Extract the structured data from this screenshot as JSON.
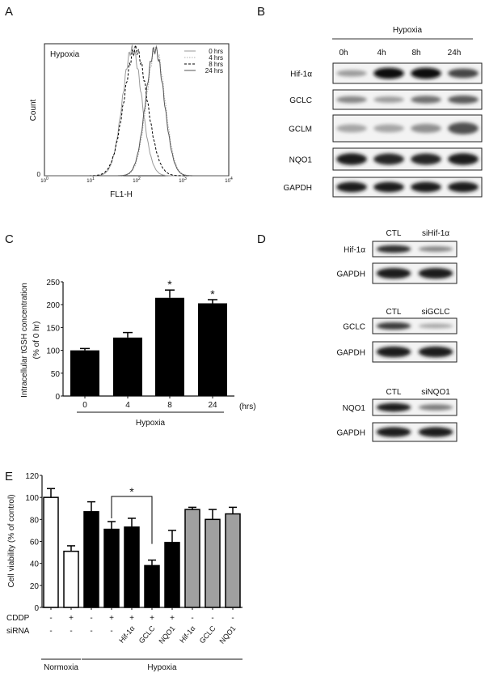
{
  "panels": {
    "a": "A",
    "b": "B",
    "c": "C",
    "d": "D",
    "e": "E"
  },
  "chart_data": [
    {
      "panel": "A",
      "type": "line",
      "title": "Hypoxia",
      "xlabel": "FL1-H",
      "ylabel": "Count",
      "x_scale": "log",
      "xlim": [
        1,
        10000
      ],
      "x_ticks": [
        "0",
        "1",
        "2",
        "3",
        "4"
      ],
      "x_tick_base": "10",
      "y_ticks": [
        "0"
      ],
      "legend_position": "top-right",
      "series": [
        {
          "name": "0 hrs",
          "peak_fl1h": 80,
          "log_sigma": 0.21,
          "color": "#9a9a9a",
          "style": "solid"
        },
        {
          "name": "4 hrs",
          "peak_fl1h": 260,
          "log_sigma": 0.2,
          "color": "#b0b0b0",
          "style": "dotted"
        },
        {
          "name": "8 hrs",
          "peak_fl1h": 95,
          "log_sigma": 0.25,
          "color": "#000000",
          "style": "dashed"
        },
        {
          "name": "24 hrs",
          "peak_fl1h": 250,
          "log_sigma": 0.2,
          "color": "#555555",
          "style": "solid"
        }
      ]
    },
    {
      "panel": "C",
      "type": "bar",
      "ylabel_line1": "Intracellular tGSH concentration",
      "ylabel_line2": "(% of 0 hr)",
      "categories": [
        "0",
        "4",
        "8",
        "24"
      ],
      "x_unit": "(hrs)",
      "group_label": "Hypoxia",
      "values": [
        100,
        128,
        215,
        203
      ],
      "errors": [
        4,
        11,
        17,
        8
      ],
      "significance": [
        "",
        "",
        "*",
        "*"
      ],
      "ylim": [
        0,
        250
      ],
      "y_ticks": [
        "0",
        "50",
        "100",
        "150",
        "200",
        "250"
      ]
    },
    {
      "panel": "E",
      "type": "bar",
      "ylabel": "Cell viability (% of control)",
      "ylim": [
        0,
        120
      ],
      "y_ticks": [
        "0",
        "20",
        "40",
        "60",
        "80",
        "100",
        "120"
      ],
      "row_labels": {
        "cddp": "CDDP",
        "sirna": "siRNA"
      },
      "bars": [
        {
          "cddp": "-",
          "sirna": "-",
          "value": 100,
          "error": 8,
          "fill": "#ffffff"
        },
        {
          "cddp": "+",
          "sirna": "-",
          "value": 51,
          "error": 5,
          "fill": "#ffffff"
        },
        {
          "cddp": "-",
          "sirna": "-",
          "value": 87,
          "error": 9,
          "fill": "#000000"
        },
        {
          "cddp": "+",
          "sirna": "-",
          "value": 71,
          "error": 7,
          "fill": "#000000"
        },
        {
          "cddp": "+",
          "sirna": "Hif-1α",
          "value": 73,
          "error": 8,
          "fill": "#000000"
        },
        {
          "cddp": "+",
          "sirna": "GCLC",
          "value": 38,
          "error": 5,
          "fill": "#000000"
        },
        {
          "cddp": "+",
          "sirna": "NQO1",
          "value": 59,
          "error": 11,
          "fill": "#000000"
        },
        {
          "cddp": "-",
          "sirna": "Hif-1α",
          "value": 89,
          "error": 2,
          "fill": "#a0a0a0"
        },
        {
          "cddp": "-",
          "sirna": "GCLC",
          "value": 80,
          "error": 9,
          "fill": "#a0a0a0"
        },
        {
          "cddp": "-",
          "sirna": "NQO1",
          "value": 85,
          "error": 6,
          "fill": "#a0a0a0"
        }
      ],
      "groups": [
        {
          "label": "Normoxia",
          "from_bar": 0,
          "to_bar": 1
        },
        {
          "label": "Hypoxia",
          "from_bar": 2,
          "to_bar": 9
        }
      ],
      "significance_bracket": {
        "from_bar": 3,
        "to_bar": 5,
        "label": "*"
      }
    }
  ],
  "blot_b": {
    "condition": "Hypoxia",
    "lanes": [
      "0h",
      "4h",
      "8h",
      "24h"
    ],
    "rows": [
      {
        "label": "Hif-1α",
        "intensity": [
          0.35,
          1.0,
          1.0,
          0.75
        ]
      },
      {
        "label": "GCLC",
        "intensity": [
          0.45,
          0.35,
          0.55,
          0.65
        ]
      },
      {
        "label": "GCLM",
        "intensity": [
          0.3,
          0.3,
          0.4,
          0.7
        ]
      },
      {
        "label": "NQO1",
        "intensity": [
          0.95,
          0.9,
          0.9,
          0.95
        ]
      },
      {
        "label": "GAPDH",
        "intensity": [
          0.95,
          0.95,
          0.95,
          0.95
        ]
      }
    ]
  },
  "blot_d": [
    {
      "lanes": [
        "CTL",
        "siHif-1α"
      ],
      "rows": [
        {
          "label": "Hif-1α",
          "intensity": [
            0.85,
            0.45
          ]
        },
        {
          "label": "GAPDH",
          "intensity": [
            0.95,
            0.95
          ]
        }
      ]
    },
    {
      "lanes": [
        "CTL",
        "siGCLC"
      ],
      "rows": [
        {
          "label": "GCLC",
          "intensity": [
            0.8,
            0.3
          ]
        },
        {
          "label": "GAPDH",
          "intensity": [
            0.95,
            0.95
          ]
        }
      ]
    },
    {
      "lanes": [
        "CTL",
        "siNQO1"
      ],
      "rows": [
        {
          "label": "NQO1",
          "intensity": [
            0.95,
            0.5
          ]
        },
        {
          "label": "GAPDH",
          "intensity": [
            0.95,
            0.95
          ]
        }
      ]
    }
  ]
}
